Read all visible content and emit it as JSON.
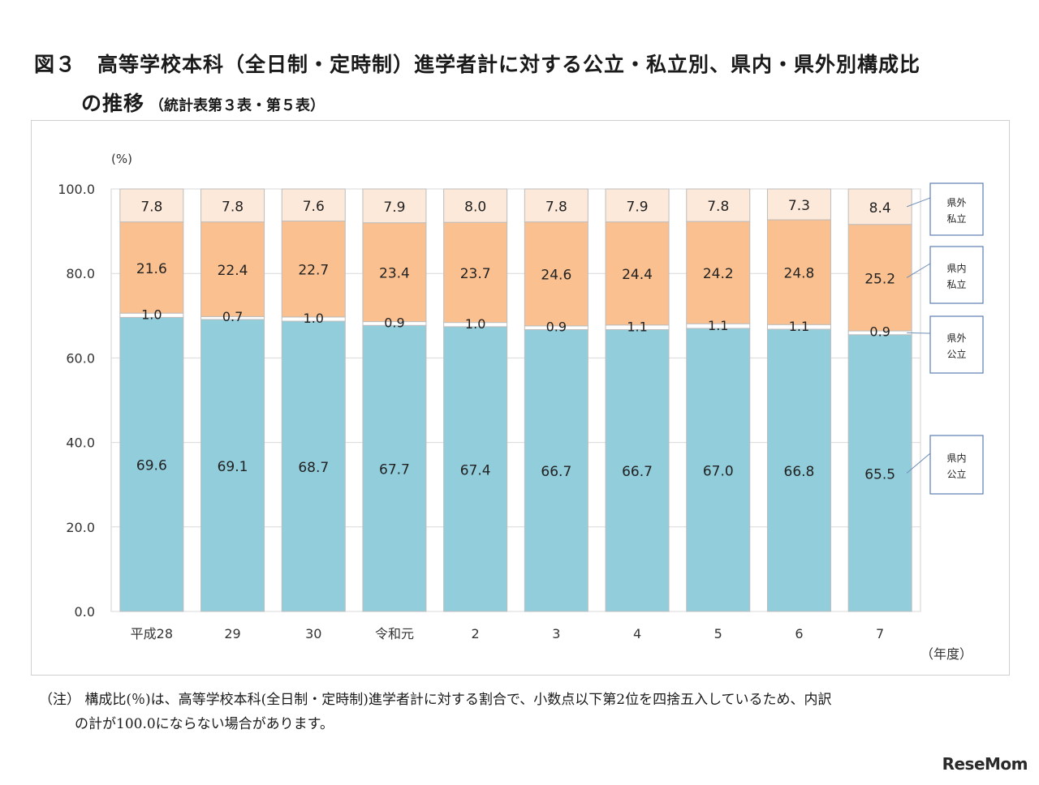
{
  "title": {
    "line1": "図３　高等学校本科（全日制・定時制）進学者計に対する公立・私立別、県内・県外別構成比",
    "line2": "の推移",
    "source": "（統計表第３表・第５表）"
  },
  "chart_data": {
    "type": "bar",
    "stacked": true,
    "unit_label": "(%)",
    "x_unit_label": "（年度）",
    "ylim": [
      0,
      100
    ],
    "y_ticks": [
      "0.0",
      "20.0",
      "40.0",
      "60.0",
      "80.0",
      "100.0"
    ],
    "categories": [
      "平成28",
      "29",
      "30",
      "令和元",
      "2",
      "3",
      "4",
      "5",
      "6",
      "7"
    ],
    "series": [
      {
        "name": "県内\n公立",
        "color": "#92cddc",
        "values": [
          69.6,
          69.1,
          68.7,
          67.7,
          67.4,
          66.7,
          66.7,
          67.0,
          66.8,
          65.5
        ]
      },
      {
        "name": "県外\n公立",
        "color": "#ffffff",
        "values": [
          1.0,
          0.7,
          1.0,
          0.9,
          1.0,
          0.9,
          1.1,
          1.1,
          1.1,
          0.9
        ]
      },
      {
        "name": "県内\n私立",
        "color": "#fac090",
        "values": [
          21.6,
          22.4,
          22.7,
          23.4,
          23.7,
          24.6,
          24.4,
          24.2,
          24.8,
          25.2
        ]
      },
      {
        "name": "県外\n私立",
        "color": "#fde9d9",
        "values": [
          7.8,
          7.8,
          7.6,
          7.9,
          8.0,
          7.8,
          7.9,
          7.8,
          7.3,
          8.4
        ]
      }
    ],
    "value_labels": {
      "県内公立": [
        "69.6",
        "69.1",
        "68.7",
        "67.7",
        "67.4",
        "66.7",
        "66.7",
        "67.0",
        "66.8",
        "65.5"
      ],
      "県外公立": [
        "1.0",
        "0.7",
        "1.0",
        "0.9",
        "1.0",
        "0.9",
        "1.1",
        "1.1",
        "1.1",
        "0.9"
      ],
      "県内私立": [
        "21.6",
        "22.4",
        "22.7",
        "23.4",
        "23.7",
        "24.6",
        "24.4",
        "24.2",
        "24.8",
        "25.2"
      ],
      "県外私立": [
        "7.8",
        "7.8",
        "7.6",
        "7.9",
        "8.0",
        "7.8",
        "7.9",
        "7.8",
        "7.3",
        "8.4"
      ]
    },
    "legend_placement": "right",
    "grid": true
  },
  "note": {
    "line1": "（注） 構成比(％)は、高等学校本科(全日制・定時制)進学者計に対する割合で、小数点以下第2位を四捨五入しているため、内訳",
    "line2": "の計が100.0にならない場合があります。"
  },
  "watermark": "ReseMom"
}
